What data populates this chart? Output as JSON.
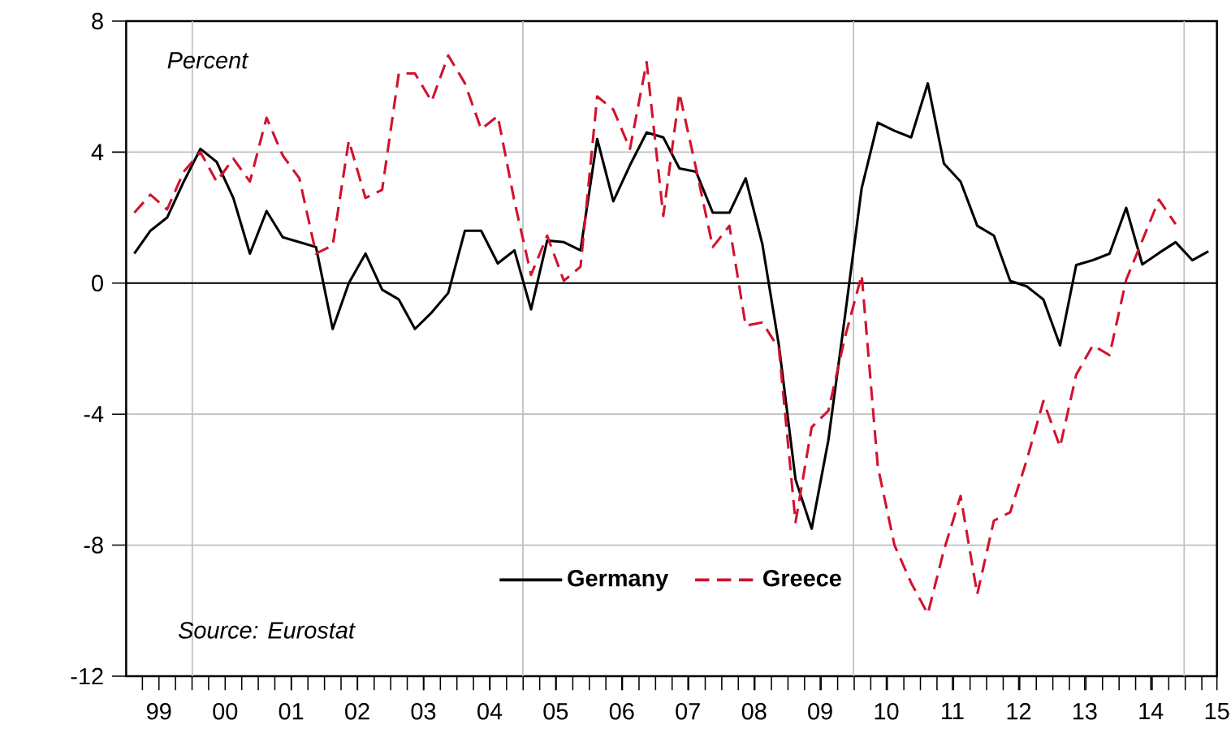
{
  "chart_data": {
    "type": "line",
    "grid": "y",
    "legend": "bottom",
    "annotations": [
      "Percent",
      "Source: Eurostat"
    ],
    "x": [
      "1999-02-15",
      "1999-05-15",
      "1999-08-15",
      "1999-11-15",
      "2000-02-15",
      "2000-05-15",
      "2000-08-15",
      "2000-11-15",
      "2001-02-15",
      "2001-05-15",
      "2001-08-15",
      "2001-11-15",
      "2002-02-15",
      "2002-05-15",
      "2002-08-15",
      "2002-11-15",
      "2003-02-15",
      "2003-05-15",
      "2003-08-15",
      "2003-11-15",
      "2004-02-15",
      "2004-05-15",
      "2004-08-15",
      "2004-11-15",
      "2005-02-15",
      "2005-05-15",
      "2005-08-15",
      "2005-11-15",
      "2006-02-15",
      "2006-05-15",
      "2006-08-15",
      "2006-11-15",
      "2007-02-15",
      "2007-05-15",
      "2007-08-15",
      "2007-11-15",
      "2008-02-15",
      "2008-05-15",
      "2008-08-15",
      "2008-11-15",
      "2009-02-15",
      "2009-05-15",
      "2009-08-15",
      "2009-11-15",
      "2010-02-15",
      "2010-05-15",
      "2010-08-15",
      "2010-11-15",
      "2011-02-15",
      "2011-05-15",
      "2011-08-15",
      "2011-11-15",
      "2012-02-15",
      "2012-05-15",
      "2012-08-15",
      "2012-11-15",
      "2013-02-15",
      "2013-05-15",
      "2013-08-15",
      "2013-11-15",
      "2014-02-15",
      "2014-05-15",
      "2014-08-15",
      "2014-11-15",
      "2015-02-15",
      "2015-05-15"
    ],
    "series": [
      {
        "name": "Germany",
        "color": "#000000",
        "line_style": "solid",
        "values": [
          0.9,
          1.6,
          2.0,
          3.1,
          4.1,
          3.7,
          2.6,
          0.9,
          2.2,
          1.4,
          1.25,
          1.1,
          -1.4,
          0.0,
          0.9,
          -0.2,
          -0.5,
          -1.4,
          -0.9,
          -0.3,
          1.6,
          1.6,
          0.6,
          1.0,
          -0.8,
          1.3,
          1.25,
          1.0,
          4.4,
          2.5,
          3.6,
          4.6,
          4.45,
          3.5,
          3.4,
          2.15,
          2.15,
          3.2,
          1.2,
          -1.9,
          -6.0,
          -7.5,
          -4.8,
          -1.0,
          2.9,
          4.9,
          4.65,
          4.45,
          6.1,
          3.65,
          3.1,
          1.75,
          1.45,
          0.07,
          -0.1,
          -0.5,
          -1.9,
          0.55,
          0.7,
          0.9,
          2.3,
          0.57,
          0.92,
          1.25,
          0.7,
          0.97
        ]
      },
      {
        "name": "Greece",
        "color": "#d2122e",
        "line_style": "dashed",
        "values": [
          2.15,
          2.7,
          2.25,
          3.4,
          4.0,
          3.1,
          3.8,
          3.1,
          5.05,
          3.9,
          3.2,
          0.9,
          1.15,
          4.35,
          2.6,
          2.85,
          6.4,
          6.4,
          5.55,
          6.95,
          6.1,
          4.7,
          5.1,
          2.5,
          0.25,
          1.45,
          0.07,
          0.5,
          5.7,
          5.3,
          4.1,
          6.75,
          2.05,
          5.8,
          3.5,
          1.1,
          1.75,
          -1.3,
          -1.2,
          -2.0,
          -7.3,
          -4.4,
          -3.9,
          -1.65,
          0.25,
          -5.6,
          -8.0,
          -9.15,
          -10.1,
          -8.15,
          -6.5,
          -9.5,
          -7.25,
          -7.0,
          -5.4,
          -3.6,
          -5.0,
          -2.8,
          -1.9,
          -2.2,
          0.1,
          1.3,
          2.55,
          1.8,
          null,
          null
        ]
      }
    ],
    "xlim": [
      "1999-01-01",
      "2015-07-01"
    ],
    "ylim": [
      -12,
      8
    ],
    "yticks": [
      8,
      4,
      0,
      -4,
      -8,
      -12
    ],
    "xticks": [
      {
        "value": "1999-07-01",
        "label": "99"
      },
      {
        "value": "2000-07-01",
        "label": "00"
      },
      {
        "value": "2001-07-01",
        "label": "01"
      },
      {
        "value": "2002-07-01",
        "label": "02"
      },
      {
        "value": "2003-07-01",
        "label": "03"
      },
      {
        "value": "2004-07-01",
        "label": "04"
      },
      {
        "value": "2005-07-01",
        "label": "05"
      },
      {
        "value": "2006-07-01",
        "label": "06"
      },
      {
        "value": "2007-07-01",
        "label": "07"
      },
      {
        "value": "2008-07-01",
        "label": "08"
      },
      {
        "value": "2009-07-01",
        "label": "09"
      },
      {
        "value": "2010-07-01",
        "label": "10"
      },
      {
        "value": "2011-07-01",
        "label": "11"
      },
      {
        "value": "2012-07-01",
        "label": "12"
      },
      {
        "value": "2013-07-01",
        "label": "13"
      },
      {
        "value": "2014-07-01",
        "label": "14"
      },
      {
        "value": "2015-07-01",
        "label": "15"
      }
    ],
    "ref_lines": [
      {
        "axis": "x",
        "value": "2000-01-01",
        "color": "#c0c0c0"
      },
      {
        "axis": "x",
        "value": "2005-01-01",
        "color": "#c0c0c0"
      },
      {
        "axis": "x",
        "value": "2010-01-01",
        "color": "#c0c0c0"
      },
      {
        "axis": "x",
        "value": "2015-01-01",
        "color": "#c0c0c0"
      },
      {
        "axis": "y",
        "value": 0,
        "color": "#000000"
      }
    ]
  }
}
